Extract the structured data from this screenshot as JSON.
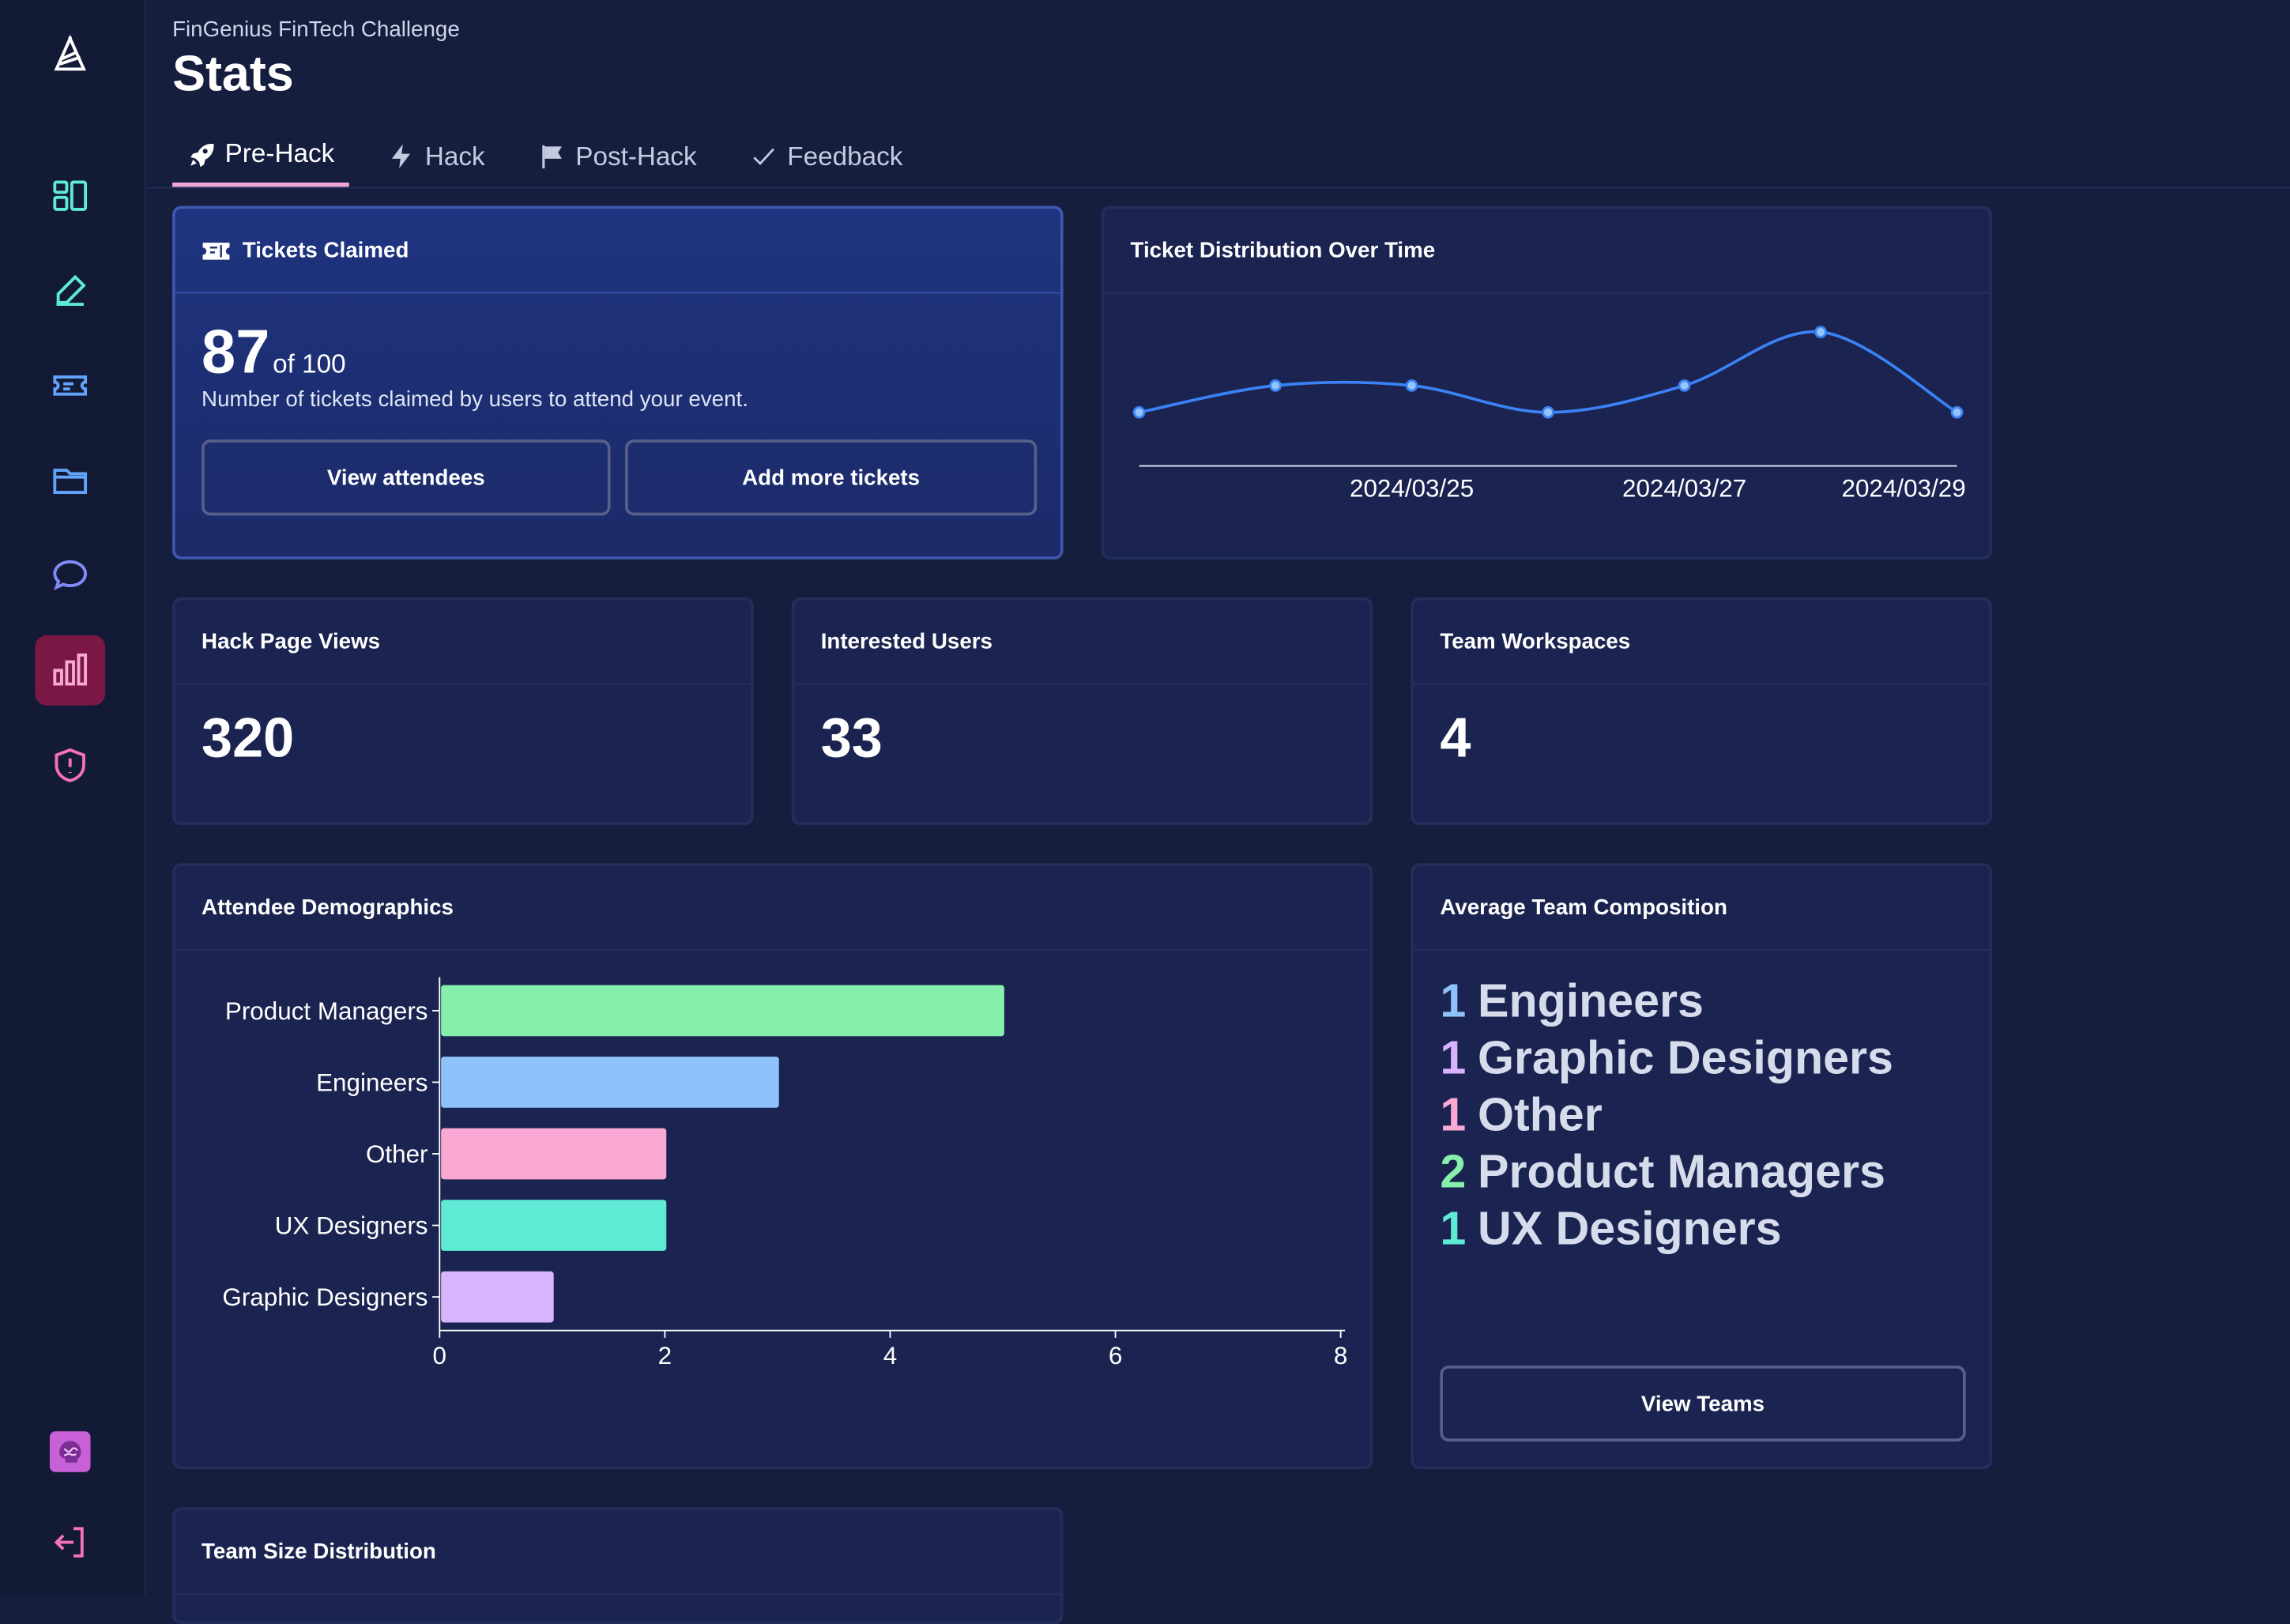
{
  "header": {
    "event_name": "FinGenius FinTech Challenge",
    "page_title": "Stats"
  },
  "tabs": [
    {
      "label": "Pre-Hack",
      "icon": "rocket-icon",
      "active": true
    },
    {
      "label": "Hack",
      "icon": "bolt-icon",
      "active": false
    },
    {
      "label": "Post-Hack",
      "icon": "flag-icon",
      "active": false
    },
    {
      "label": "Feedback",
      "icon": "check-icon",
      "active": false
    }
  ],
  "sidebar": {
    "items": [
      {
        "icon": "logo-icon"
      },
      {
        "icon": "dashboard-icon"
      },
      {
        "icon": "edit-icon"
      },
      {
        "icon": "ticket-icon"
      },
      {
        "icon": "folder-icon"
      },
      {
        "icon": "chat-icon"
      },
      {
        "icon": "bar-chart-icon",
        "active": true
      },
      {
        "icon": "shield-alert-icon"
      },
      {
        "icon": "brain-avatar-icon"
      },
      {
        "icon": "logout-icon"
      }
    ]
  },
  "tickets": {
    "title": "Tickets Claimed",
    "claimed": "87",
    "total_label": "of 100",
    "description": "Number of tickets claimed by users to attend your event.",
    "view_attendees_label": "View attendees",
    "add_tickets_label": "Add more tickets"
  },
  "distribution": {
    "title": "Ticket Distribution Over Time",
    "tick_labels": [
      "2024/03/25",
      "2024/03/27",
      "2024/03/29"
    ]
  },
  "stats": {
    "page_views": {
      "title": "Hack Page Views",
      "value": "320"
    },
    "interested": {
      "title": "Interested Users",
      "value": "33"
    },
    "workspaces": {
      "title": "Team Workspaces",
      "value": "4"
    }
  },
  "demographics": {
    "title": "Attendee Demographics"
  },
  "composition": {
    "title": "Average Team Composition",
    "items": [
      {
        "count": "1",
        "role": "Engineers",
        "color": "#8fc1fb"
      },
      {
        "count": "1",
        "role": "Graphic Designers",
        "color": "#d9b4fe"
      },
      {
        "count": "1",
        "role": "Other",
        "color": "#f9a9d4"
      },
      {
        "count": "2",
        "role": "Product Managers",
        "color": "#86efac"
      },
      {
        "count": "1",
        "role": "UX Designers",
        "color": "#5eead4"
      }
    ],
    "view_teams_label": "View Teams"
  },
  "team_size": {
    "title": "Team Size Distribution"
  },
  "colors": {
    "background": "#161e3e",
    "card": "#1b2450",
    "accent_pink": "#f0a6d6",
    "active_sidebar": "#7a1745",
    "line_series": "#3b82f6"
  },
  "chart_data": [
    {
      "type": "line",
      "title": "Ticket Distribution Over Time",
      "x": [
        "2024/03/23",
        "2024/03/24",
        "2024/03/25",
        "2024/03/26",
        "2024/03/27",
        "2024/03/28",
        "2024/03/29"
      ],
      "x_tick_labels": [
        "2024/03/25",
        "2024/03/27",
        "2024/03/29"
      ],
      "series": [
        {
          "values": [
            10,
            15,
            15,
            10,
            15,
            25,
            10
          ]
        }
      ],
      "ylim": [
        0,
        30
      ],
      "grid": false
    },
    {
      "type": "bar",
      "orientation": "horizontal",
      "title": "Attendee Demographics",
      "categories": [
        "Product Managers",
        "Engineers",
        "Other",
        "UX Designers",
        "Graphic Designers"
      ],
      "values": [
        5,
        3,
        2,
        2,
        1
      ],
      "colors": [
        "#86efac",
        "#8fc1fb",
        "#f9a9d4",
        "#5eead4",
        "#d9b4fe"
      ],
      "xlim": [
        0,
        8
      ],
      "x_ticks": [
        0,
        2,
        4,
        6,
        8
      ],
      "grid": false
    }
  ]
}
